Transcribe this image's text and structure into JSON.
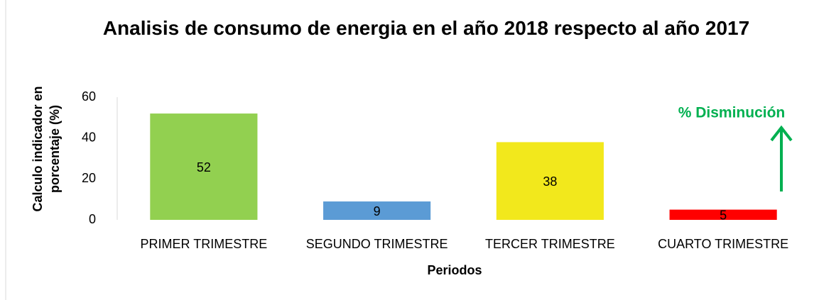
{
  "chart_data": {
    "type": "bar",
    "title": "Analisis de consumo de energia en el año 2018 respecto al año 2017",
    "x_label": "Periodos",
    "y_label": "Calculo indicador en porcentaje (%)",
    "annotation": "% Disminución",
    "categories": [
      "PRIMER TRIMESTRE",
      "SEGUNDO TRIMESTRE",
      "TERCER TRIMESTRE",
      "CUARTO TRIMESTRE"
    ],
    "values": [
      52,
      9,
      38,
      5
    ],
    "colors": [
      "#92d050",
      "#5b9bd5",
      "#f2e81c",
      "#ff0000"
    ],
    "ylim": [
      0,
      60
    ],
    "yticks": [
      0,
      20,
      40,
      60
    ],
    "grid": false
  }
}
